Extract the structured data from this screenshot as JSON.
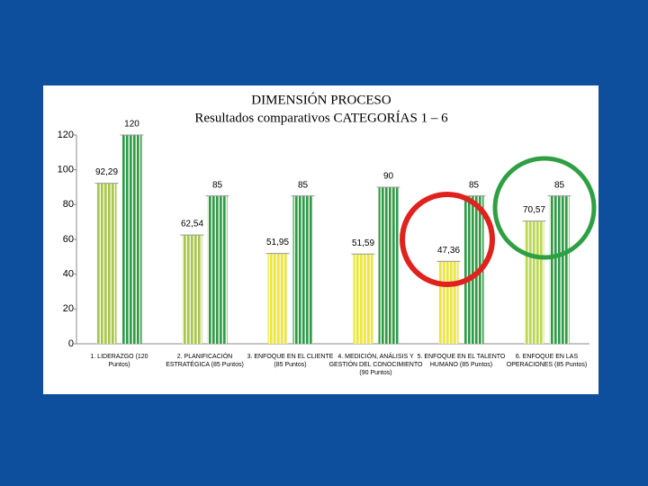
{
  "chart_data": {
    "type": "bar",
    "title": "DIMENSIÓN PROCESO",
    "subtitle": "Resultados comparativos  CATEGORÍAS  1 – 6",
    "categories": [
      "1. LIDERAZGO (120 Puntos)",
      "2. PLANIFICACIÓN ESTRATÉGICA (85 Puntos)",
      "3. ENFOQUE EN EL CLIENTE (85 Puntos)",
      "4. MEDICIÓN, ANÁLISIS Y GESTIÓN DEL CONOCIMIENTO (90 Puntos)",
      "5. ENFOQUE EN EL TALENTO HUMANO (85 Puntos)",
      "6. ENFOQUE EN LAS OPERACIONES (85 Puntos)"
    ],
    "series": [
      {
        "colors": [
          "#a9c64b",
          "#a9c64b",
          "#efe63a",
          "#efe63a",
          "#efe63a",
          "#bcd84e"
        ],
        "values": [
          92.29,
          62.54,
          51.95,
          51.59,
          47.36,
          70.57
        ],
        "value_labels": [
          "92,29",
          "62,54",
          "51,95",
          "51,59",
          "47,36",
          "70,57"
        ]
      },
      {
        "color": "#2f9a4a",
        "values": [
          120,
          85,
          85,
          90,
          85,
          85
        ],
        "value_labels": [
          "120",
          "85",
          "85",
          "90",
          "85",
          "85"
        ]
      }
    ],
    "ylim": [
      0,
      120
    ],
    "yticks": [
      0,
      20,
      40,
      60,
      80,
      100,
      120
    ],
    "grid": false
  }
}
